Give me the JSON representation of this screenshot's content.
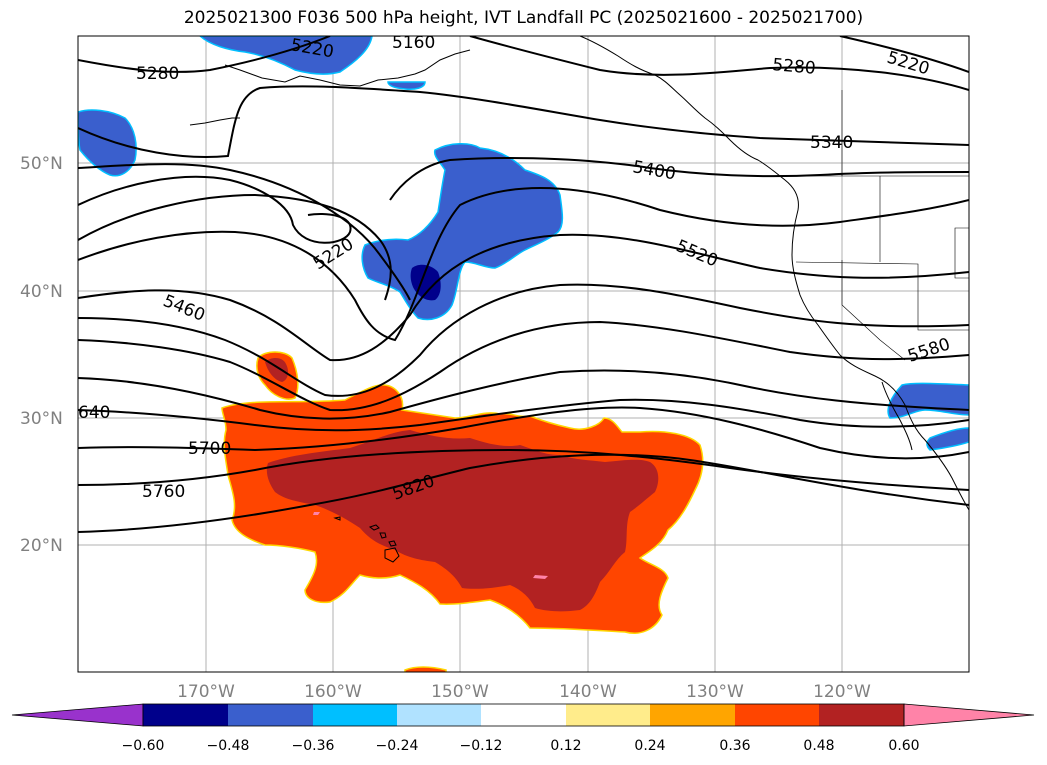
{
  "title": "2025021300 F036 500 hPa height, IVT Landfall PC (2025021600 - 2025021700)",
  "lat_ticks": [
    "50°N",
    "40°N",
    "30°N",
    "20°N"
  ],
  "lon_ticks": [
    "170°W",
    "160°W",
    "150°W",
    "140°W",
    "130°W",
    "120°W"
  ],
  "contour_labels": [
    "5220",
    "5160",
    "5280",
    "5280",
    "5220",
    "5340",
    "5400",
    "5220",
    "5520",
    "5460",
    "5580",
    "640",
    "5700",
    "5760",
    "5820"
  ],
  "colorbar": {
    "ticks": [
      "−0.60",
      "−0.48",
      "−0.36",
      "−0.24",
      "−0.12",
      "0.12",
      "0.24",
      "0.36",
      "0.48",
      "0.60"
    ],
    "colors": [
      "#9932cc",
      "#00008b",
      "#3a5fcd",
      "#00bfff",
      "#b0e2ff",
      "#ffffff",
      "#ffec8b",
      "#ffa500",
      "#ff4500",
      "#b22222",
      "#ff83a8"
    ]
  },
  "colors": {
    "positive_high": "#b22222",
    "positive_mid": "#ff4500",
    "negative_mid": "#3a5fcd",
    "negative_high": "#00008b",
    "contour": "#000000",
    "grid": "#b0b0b0"
  }
}
